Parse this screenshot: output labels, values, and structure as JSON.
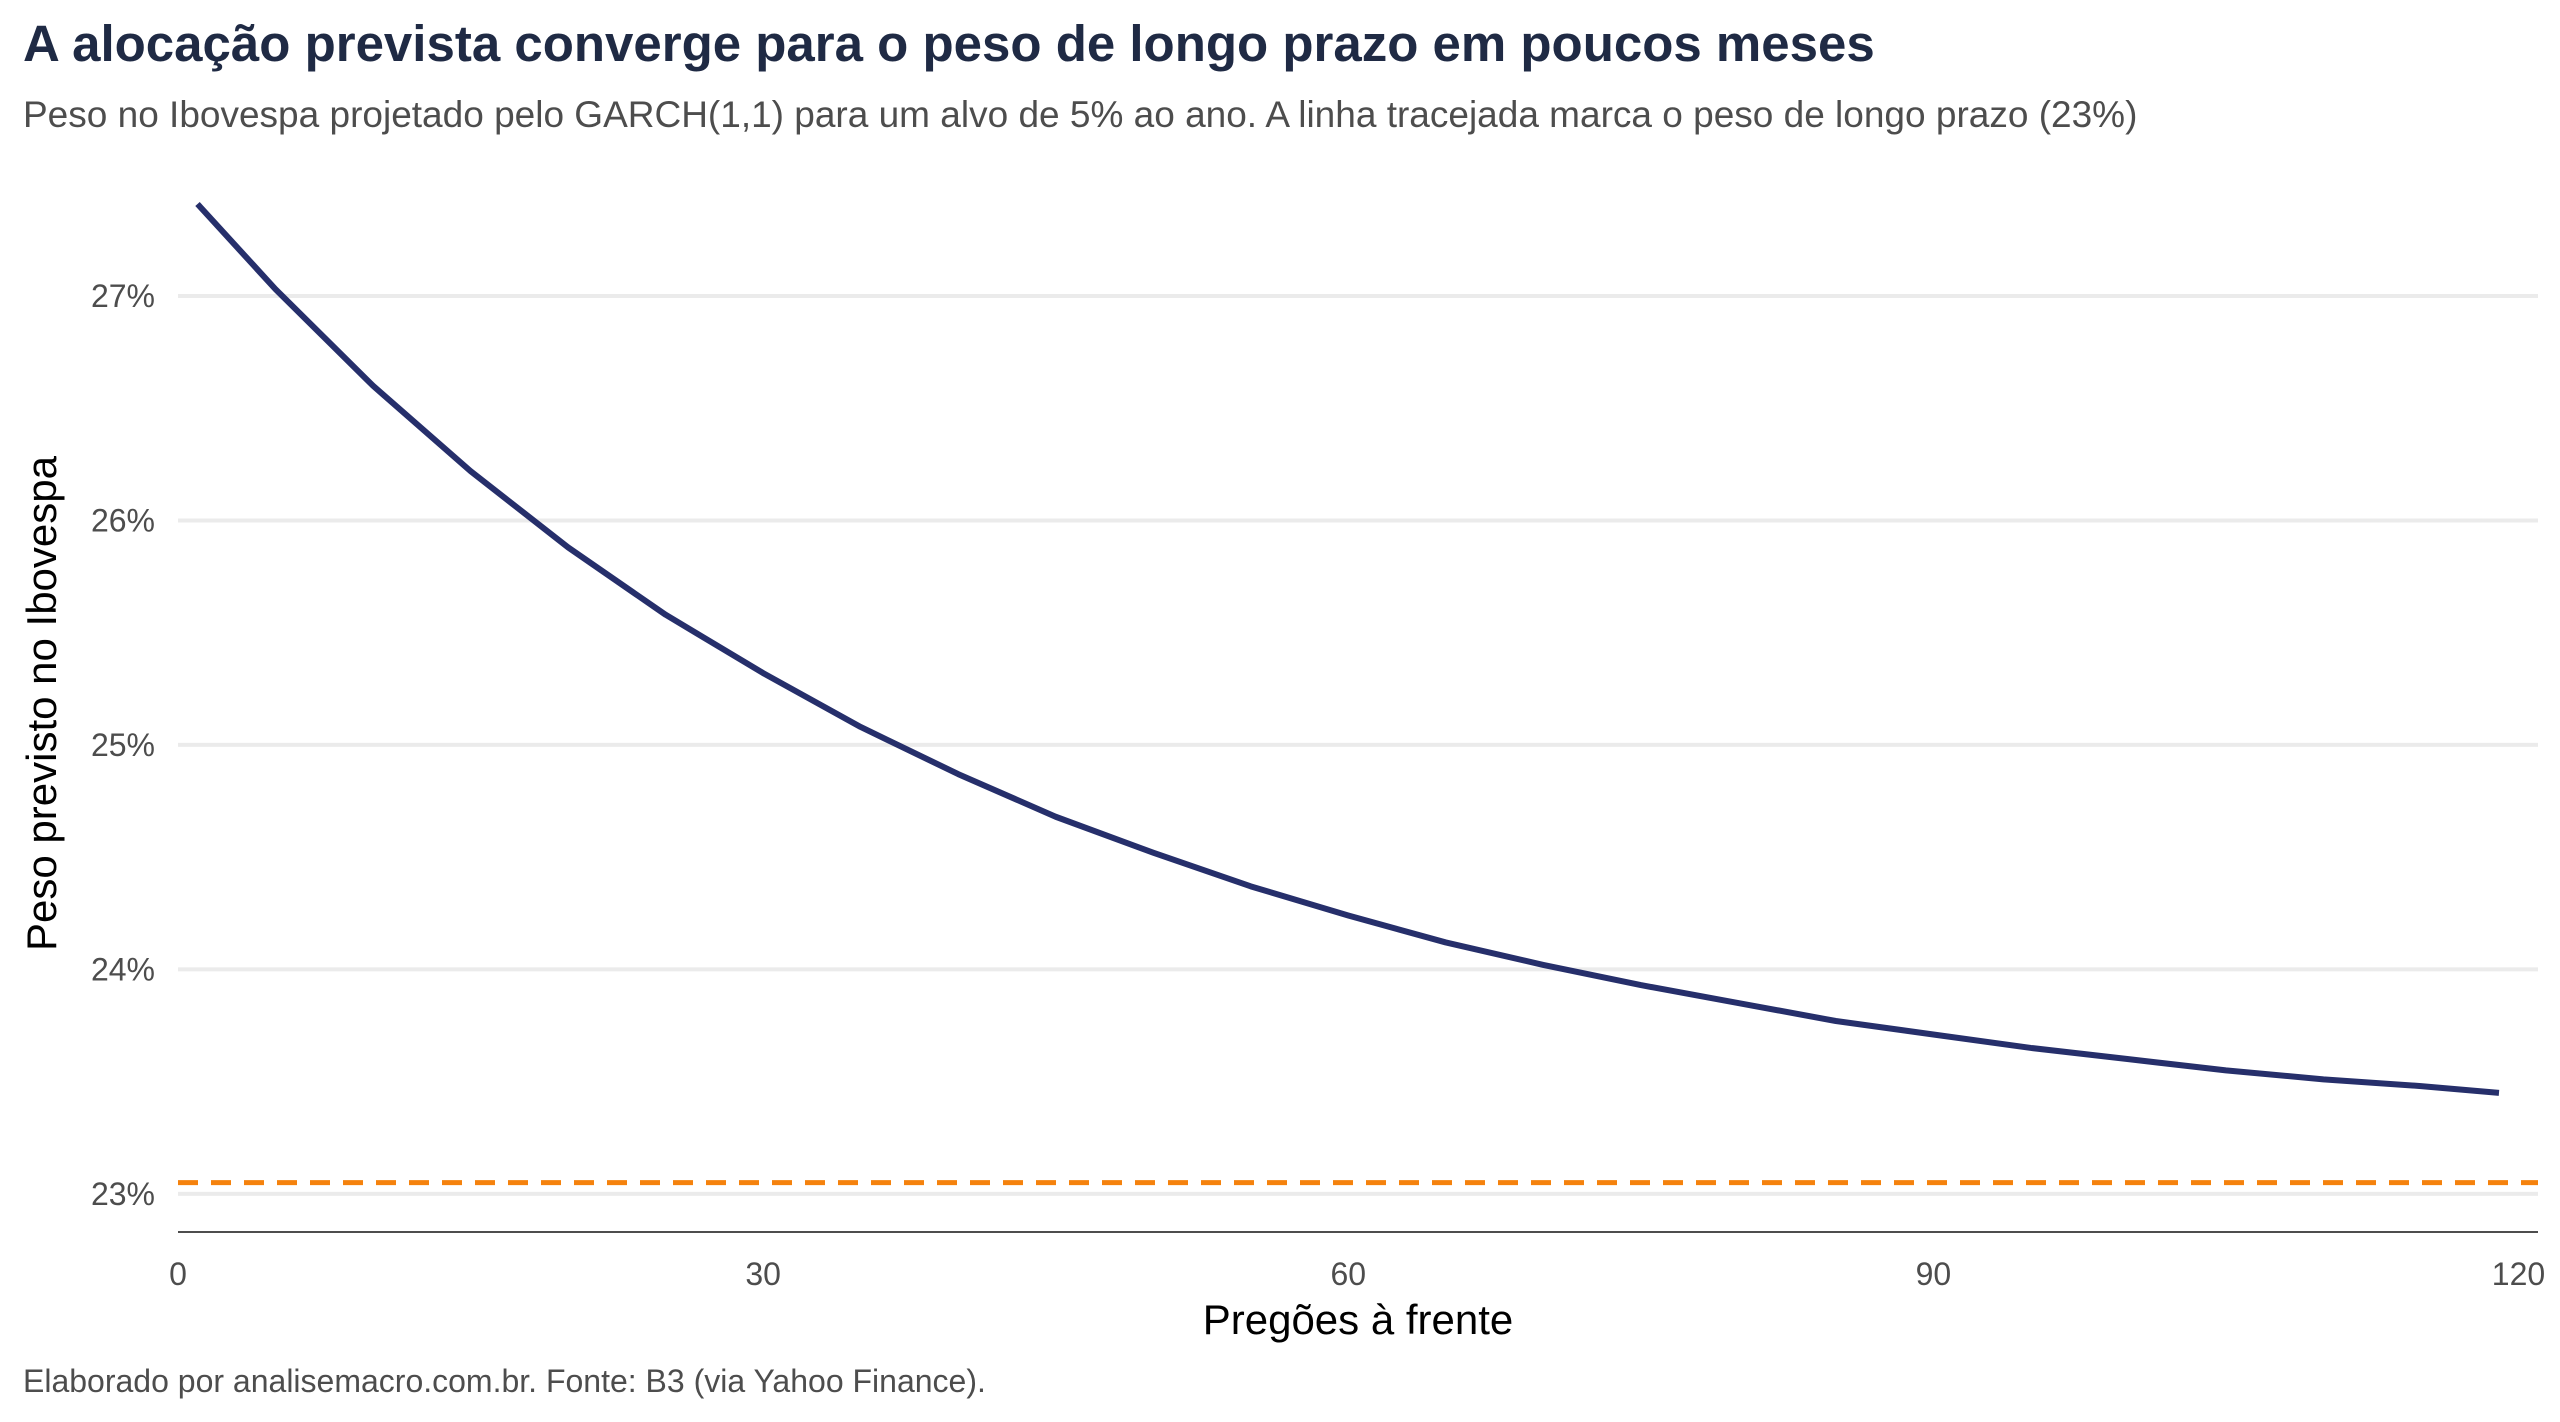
{
  "chart_data": {
    "type": "line",
    "title": "A alocação prevista converge para o peso de longo prazo em poucos meses",
    "subtitle": "Peso no Ibovespa projetado pelo GARCH(1,1) para um alvo de 5% ao ano. A linha tracejada marca o peso de longo prazo (23%)",
    "caption": "Elaborado por analisemacro.com.br. Fonte: B3 (via Yahoo Finance).",
    "xlabel": "Pregões à frente",
    "ylabel": "Peso previsto no Ibovespa",
    "xlim": [
      0,
      121
    ],
    "ylim": [
      22.83,
      27.45
    ],
    "x_ticks": [
      0,
      30,
      60,
      90,
      120
    ],
    "x_tick_labels": [
      "0",
      "30",
      "60",
      "90",
      "120"
    ],
    "y_ticks": [
      23,
      24,
      25,
      26,
      27
    ],
    "y_tick_labels": [
      "23%",
      "24%",
      "25%",
      "26%",
      "27%"
    ],
    "grid": "horizontal",
    "colors": {
      "series": "#262f6b",
      "reference": "#f5820d",
      "grid": "#ebebeb",
      "axis": "#4d4d4d"
    },
    "series": [
      {
        "x": [
          1,
          5,
          10,
          15,
          20,
          25,
          30,
          35,
          40,
          45,
          50,
          55,
          60,
          65,
          70,
          75,
          80,
          85,
          90,
          95,
          100,
          105,
          110,
          115,
          119
        ],
        "values": [
          27.41,
          27.03,
          26.6,
          26.22,
          25.88,
          25.58,
          25.32,
          25.08,
          24.87,
          24.68,
          24.52,
          24.37,
          24.24,
          24.12,
          24.02,
          23.93,
          23.85,
          23.77,
          23.71,
          23.65,
          23.6,
          23.55,
          23.51,
          23.48,
          23.45
        ]
      }
    ],
    "reference_line": {
      "y": 23.05,
      "style": "dashed"
    }
  }
}
